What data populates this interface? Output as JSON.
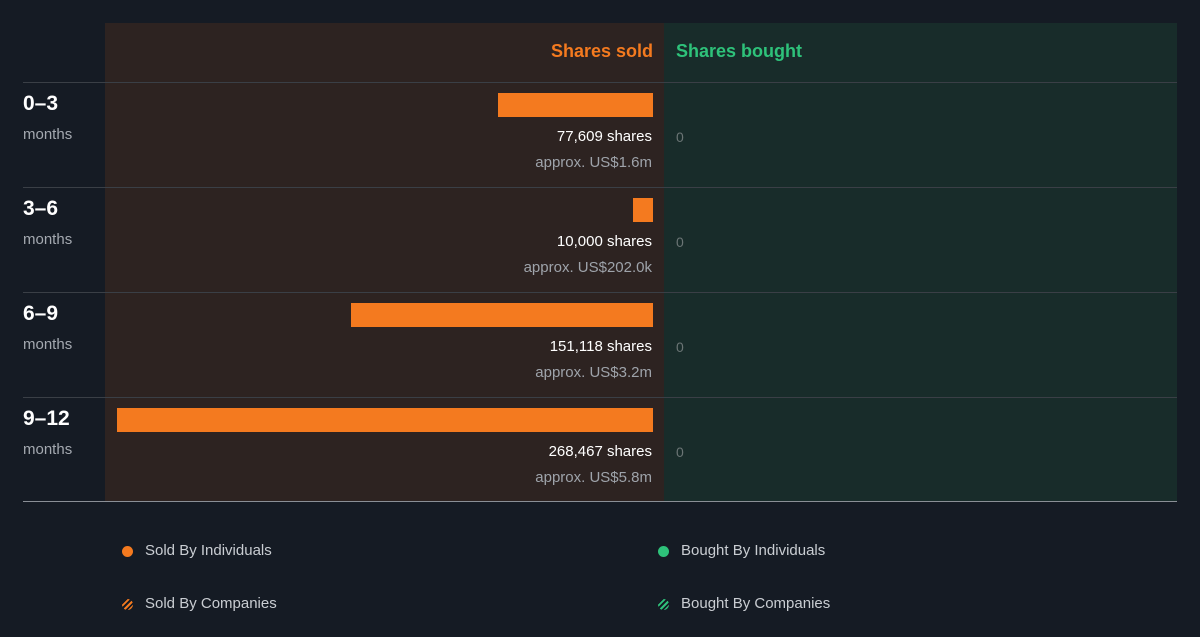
{
  "headers": {
    "sold": "Shares sold",
    "bought": "Shares bought"
  },
  "colors": {
    "sold": "#f47a1f",
    "bought": "#2ec27a"
  },
  "rows": [
    {
      "period": "0–3",
      "unit": "months",
      "shares_text": "77,609 shares",
      "approx_text": "approx. US$1.6m",
      "bought_text": "0"
    },
    {
      "period": "3–6",
      "unit": "months",
      "shares_text": "10,000 shares",
      "approx_text": "approx. US$202.0k",
      "bought_text": "0"
    },
    {
      "period": "6–9",
      "unit": "months",
      "shares_text": "151,118 shares",
      "approx_text": "approx. US$3.2m",
      "bought_text": "0"
    },
    {
      "period": "9–12",
      "unit": "months",
      "shares_text": "268,467 shares",
      "approx_text": "approx. US$5.8m",
      "bought_text": "0"
    }
  ],
  "legend": {
    "sold_individuals": "Sold By Individuals",
    "sold_companies": "Sold By Companies",
    "bought_individuals": "Bought By Individuals",
    "bought_companies": "Bought By Companies"
  },
  "chart_data": {
    "type": "bar",
    "orientation": "horizontal-diverging",
    "categories": [
      "0–3 months",
      "3–6 months",
      "6–9 months",
      "9–12 months"
    ],
    "series": [
      {
        "name": "Sold By Individuals",
        "values": [
          77609,
          10000,
          151118,
          268467
        ]
      },
      {
        "name": "Bought By Individuals",
        "values": [
          0,
          0,
          0,
          0
        ]
      }
    ],
    "approx_value_labels": [
      "approx. US$1.6m",
      "approx. US$202.0k",
      "approx. US$3.2m",
      "approx. US$5.8m"
    ],
    "legend_position": "bottom"
  }
}
